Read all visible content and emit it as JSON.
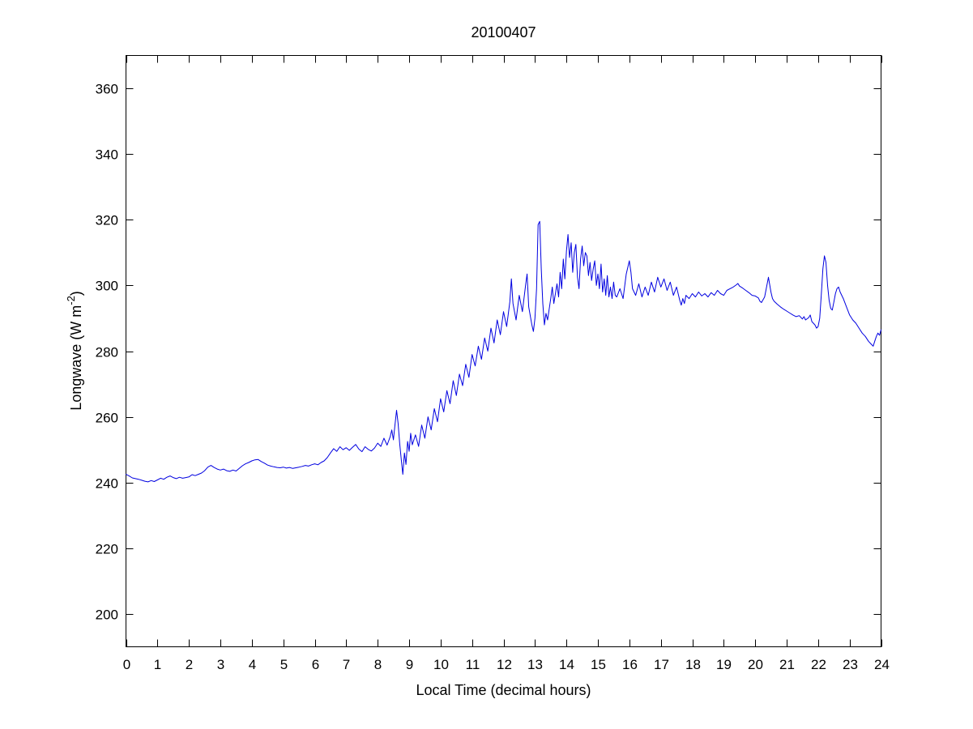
{
  "figure": {
    "background": "#ffffff",
    "axis_color": "#000000"
  },
  "chart_data": {
    "type": "line",
    "title": "20100407",
    "xlabel": "Local Time (decimal hours)",
    "ylabel": {
      "prefix": "Longwave (W m",
      "superscript": "-2",
      "suffix": ")"
    },
    "xlim": [
      0,
      24
    ],
    "ylim": [
      190,
      370
    ],
    "x_ticks": [
      0,
      1,
      2,
      3,
      4,
      5,
      6,
      7,
      8,
      9,
      10,
      11,
      12,
      13,
      14,
      15,
      16,
      17,
      18,
      19,
      20,
      21,
      22,
      23,
      24
    ],
    "y_ticks": [
      200,
      220,
      240,
      260,
      280,
      300,
      320,
      340,
      360
    ],
    "grid": false,
    "legend": null,
    "box": true,
    "series": [
      {
        "name": "longwave",
        "color": "#0000E0",
        "points": [
          [
            0,
            242.5
          ],
          [
            0.1,
            242
          ],
          [
            0.2,
            241.4
          ],
          [
            0.3,
            241.2
          ],
          [
            0.4,
            241
          ],
          [
            0.5,
            240.7
          ],
          [
            0.6,
            240.4
          ],
          [
            0.7,
            240.2
          ],
          [
            0.8,
            240.6
          ],
          [
            0.9,
            240.3
          ],
          [
            1,
            240.8
          ],
          [
            1.1,
            241.3
          ],
          [
            1.2,
            241
          ],
          [
            1.3,
            241.6
          ],
          [
            1.4,
            242
          ],
          [
            1.5,
            241.5
          ],
          [
            1.6,
            241.2
          ],
          [
            1.7,
            241.6
          ],
          [
            1.8,
            241.3
          ],
          [
            1.9,
            241.5
          ],
          [
            2,
            241.7
          ],
          [
            2.1,
            242.4
          ],
          [
            2.2,
            242.1
          ],
          [
            2.3,
            242.5
          ],
          [
            2.4,
            242.9
          ],
          [
            2.5,
            243.6
          ],
          [
            2.6,
            244.7
          ],
          [
            2.7,
            245.2
          ],
          [
            2.8,
            244.6
          ],
          [
            2.9,
            244.1
          ],
          [
            3,
            243.8
          ],
          [
            3.1,
            244.1
          ],
          [
            3.2,
            243.6
          ],
          [
            3.3,
            243.4
          ],
          [
            3.4,
            243.8
          ],
          [
            3.5,
            243.5
          ],
          [
            3.6,
            244.3
          ],
          [
            3.7,
            245.1
          ],
          [
            3.8,
            245.7
          ],
          [
            3.9,
            246.1
          ],
          [
            4,
            246.6
          ],
          [
            4.1,
            246.9
          ],
          [
            4.2,
            247
          ],
          [
            4.3,
            246.4
          ],
          [
            4.4,
            245.9
          ],
          [
            4.5,
            245.3
          ],
          [
            4.6,
            245
          ],
          [
            4.7,
            244.8
          ],
          [
            4.8,
            244.6
          ],
          [
            4.9,
            244.5
          ],
          [
            5,
            244.7
          ],
          [
            5.1,
            244.4
          ],
          [
            5.2,
            244.6
          ],
          [
            5.3,
            244.3
          ],
          [
            5.4,
            244.5
          ],
          [
            5.5,
            244.7
          ],
          [
            5.6,
            244.9
          ],
          [
            5.7,
            245.2
          ],
          [
            5.8,
            245
          ],
          [
            5.9,
            245.4
          ],
          [
            6,
            245.7
          ],
          [
            6.1,
            245.4
          ],
          [
            6.2,
            246.1
          ],
          [
            6.3,
            246.6
          ],
          [
            6.4,
            247.6
          ],
          [
            6.5,
            249
          ],
          [
            6.6,
            250.3
          ],
          [
            6.7,
            249.5
          ],
          [
            6.8,
            250.9
          ],
          [
            6.9,
            250
          ],
          [
            7,
            250.6
          ],
          [
            7.1,
            249.8
          ],
          [
            7.2,
            250.7
          ],
          [
            7.3,
            251.6
          ],
          [
            7.4,
            250.2
          ],
          [
            7.5,
            249.4
          ],
          [
            7.6,
            250.9
          ],
          [
            7.7,
            250.1
          ],
          [
            7.8,
            249.6
          ],
          [
            7.9,
            250.5
          ],
          [
            8,
            252
          ],
          [
            8.1,
            251
          ],
          [
            8.2,
            253.5
          ],
          [
            8.3,
            251.4
          ],
          [
            8.4,
            254
          ],
          [
            8.45,
            256
          ],
          [
            8.5,
            253
          ],
          [
            8.55,
            257.5
          ],
          [
            8.6,
            262
          ],
          [
            8.65,
            258
          ],
          [
            8.7,
            252
          ],
          [
            8.75,
            247
          ],
          [
            8.8,
            242.5
          ],
          [
            8.85,
            249
          ],
          [
            8.9,
            245.5
          ],
          [
            8.95,
            252.5
          ],
          [
            9,
            249.5
          ],
          [
            9.05,
            255
          ],
          [
            9.1,
            251.5
          ],
          [
            9.2,
            254.5
          ],
          [
            9.3,
            251
          ],
          [
            9.4,
            257.5
          ],
          [
            9.5,
            253.5
          ],
          [
            9.6,
            260
          ],
          [
            9.7,
            256
          ],
          [
            9.8,
            262.5
          ],
          [
            9.9,
            258.5
          ],
          [
            10,
            265.5
          ],
          [
            10.1,
            261.5
          ],
          [
            10.2,
            268
          ],
          [
            10.3,
            264
          ],
          [
            10.4,
            271
          ],
          [
            10.5,
            266.5
          ],
          [
            10.6,
            273
          ],
          [
            10.7,
            269.5
          ],
          [
            10.8,
            276
          ],
          [
            10.9,
            272
          ],
          [
            11,
            279
          ],
          [
            11.1,
            275.5
          ],
          [
            11.2,
            281.5
          ],
          [
            11.3,
            277.5
          ],
          [
            11.4,
            284
          ],
          [
            11.5,
            280
          ],
          [
            11.6,
            287
          ],
          [
            11.7,
            282.5
          ],
          [
            11.8,
            289.5
          ],
          [
            11.9,
            285
          ],
          [
            12,
            292
          ],
          [
            12.1,
            287.5
          ],
          [
            12.2,
            295
          ],
          [
            12.25,
            302
          ],
          [
            12.3,
            294.5
          ],
          [
            12.4,
            289.5
          ],
          [
            12.5,
            297
          ],
          [
            12.6,
            292
          ],
          [
            12.7,
            300
          ],
          [
            12.75,
            303.5
          ],
          [
            12.8,
            293.5
          ],
          [
            12.9,
            288
          ],
          [
            12.95,
            286
          ],
          [
            13,
            290
          ],
          [
            13.05,
            299
          ],
          [
            13.1,
            318.5
          ],
          [
            13.15,
            319.5
          ],
          [
            13.2,
            305
          ],
          [
            13.25,
            294.5
          ],
          [
            13.3,
            288
          ],
          [
            13.35,
            291.5
          ],
          [
            13.4,
            289.5
          ],
          [
            13.5,
            296
          ],
          [
            13.55,
            299.5
          ],
          [
            13.6,
            294.5
          ],
          [
            13.7,
            300.5
          ],
          [
            13.75,
            296.5
          ],
          [
            13.8,
            304
          ],
          [
            13.85,
            299
          ],
          [
            13.9,
            308
          ],
          [
            13.95,
            302
          ],
          [
            14,
            310.5
          ],
          [
            14.05,
            315.5
          ],
          [
            14.1,
            308.5
          ],
          [
            14.15,
            313
          ],
          [
            14.2,
            304
          ],
          [
            14.25,
            310
          ],
          [
            14.3,
            312.5
          ],
          [
            14.35,
            302.5
          ],
          [
            14.4,
            299
          ],
          [
            14.45,
            308
          ],
          [
            14.5,
            312
          ],
          [
            14.55,
            306
          ],
          [
            14.6,
            310
          ],
          [
            14.65,
            309
          ],
          [
            14.7,
            303
          ],
          [
            14.75,
            307
          ],
          [
            14.8,
            301.5
          ],
          [
            14.85,
            305
          ],
          [
            14.9,
            307.5
          ],
          [
            14.95,
            300
          ],
          [
            15,
            303.5
          ],
          [
            15.05,
            299
          ],
          [
            15.1,
            306.5
          ],
          [
            15.15,
            298
          ],
          [
            15.2,
            302
          ],
          [
            15.25,
            297
          ],
          [
            15.3,
            303
          ],
          [
            15.35,
            296.5
          ],
          [
            15.4,
            299.5
          ],
          [
            15.45,
            296
          ],
          [
            15.5,
            301
          ],
          [
            15.55,
            297
          ],
          [
            15.6,
            296.5
          ],
          [
            15.7,
            299
          ],
          [
            15.8,
            296
          ],
          [
            15.9,
            303.5
          ],
          [
            16,
            307.5
          ],
          [
            16.05,
            304
          ],
          [
            16.1,
            299
          ],
          [
            16.2,
            297
          ],
          [
            16.3,
            300.5
          ],
          [
            16.4,
            296.5
          ],
          [
            16.5,
            299.5
          ],
          [
            16.6,
            297
          ],
          [
            16.7,
            301
          ],
          [
            16.8,
            298
          ],
          [
            16.9,
            302.5
          ],
          [
            17,
            299.5
          ],
          [
            17.1,
            302
          ],
          [
            17.2,
            298.5
          ],
          [
            17.3,
            301
          ],
          [
            17.4,
            297
          ],
          [
            17.5,
            299.5
          ],
          [
            17.6,
            295.5
          ],
          [
            17.65,
            294
          ],
          [
            17.7,
            296
          ],
          [
            17.75,
            294.5
          ],
          [
            17.8,
            297
          ],
          [
            17.9,
            296
          ],
          [
            18,
            297.5
          ],
          [
            18.1,
            296.5
          ],
          [
            18.2,
            298
          ],
          [
            18.3,
            296.8
          ],
          [
            18.4,
            297.5
          ],
          [
            18.5,
            296.5
          ],
          [
            18.6,
            297.8
          ],
          [
            18.7,
            297
          ],
          [
            18.8,
            298.5
          ],
          [
            18.9,
            297.5
          ],
          [
            19,
            297
          ],
          [
            19.1,
            298.5
          ],
          [
            19.2,
            299
          ],
          [
            19.3,
            299.5
          ],
          [
            19.4,
            300.2
          ],
          [
            19.45,
            300.6
          ],
          [
            19.5,
            299.8
          ],
          [
            19.6,
            299.2
          ],
          [
            19.7,
            298.5
          ],
          [
            19.8,
            297.8
          ],
          [
            19.9,
            297
          ],
          [
            20,
            296.8
          ],
          [
            20.1,
            296.2
          ],
          [
            20.15,
            295.2
          ],
          [
            20.2,
            294.8
          ],
          [
            20.3,
            296.5
          ],
          [
            20.35,
            299
          ],
          [
            20.42,
            302.5
          ],
          [
            20.5,
            298
          ],
          [
            20.55,
            296
          ],
          [
            20.6,
            295.2
          ],
          [
            20.7,
            294.3
          ],
          [
            20.8,
            293.5
          ],
          [
            20.9,
            292.8
          ],
          [
            21,
            292.2
          ],
          [
            21.1,
            291.6
          ],
          [
            21.2,
            291
          ],
          [
            21.3,
            290.5
          ],
          [
            21.4,
            290.8
          ],
          [
            21.5,
            289.8
          ],
          [
            21.55,
            290.5
          ],
          [
            21.6,
            289.5
          ],
          [
            21.7,
            290.2
          ],
          [
            21.75,
            291
          ],
          [
            21.8,
            289
          ],
          [
            21.9,
            288
          ],
          [
            21.95,
            287
          ],
          [
            22,
            287.5
          ],
          [
            22.05,
            290
          ],
          [
            22.1,
            297
          ],
          [
            22.15,
            305
          ],
          [
            22.2,
            309
          ],
          [
            22.25,
            307
          ],
          [
            22.3,
            300
          ],
          [
            22.35,
            295.5
          ],
          [
            22.4,
            293
          ],
          [
            22.45,
            292.5
          ],
          [
            22.5,
            295
          ],
          [
            22.55,
            297.5
          ],
          [
            22.6,
            299
          ],
          [
            22.65,
            299.5
          ],
          [
            22.7,
            298
          ],
          [
            22.8,
            296
          ],
          [
            22.9,
            293.5
          ],
          [
            23,
            291
          ],
          [
            23.1,
            289.5
          ],
          [
            23.2,
            288.5
          ],
          [
            23.3,
            287
          ],
          [
            23.4,
            285.5
          ],
          [
            23.5,
            284.5
          ],
          [
            23.6,
            283
          ],
          [
            23.7,
            282
          ],
          [
            23.75,
            281.5
          ],
          [
            23.8,
            283
          ],
          [
            23.85,
            284.5
          ],
          [
            23.9,
            285.5
          ],
          [
            23.95,
            284.8
          ],
          [
            24,
            286.5
          ]
        ]
      }
    ]
  }
}
